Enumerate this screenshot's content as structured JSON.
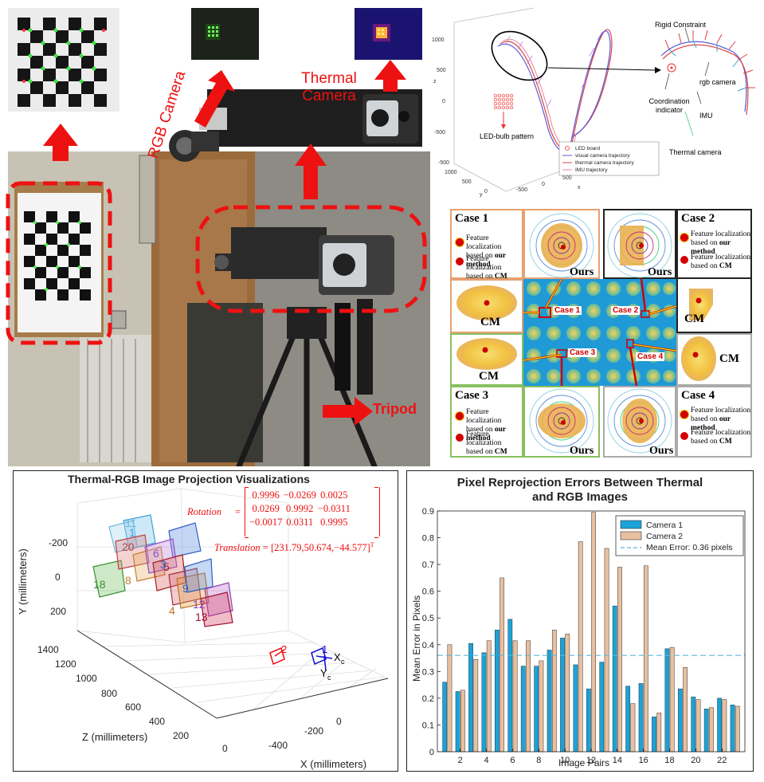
{
  "photo": {
    "rgb_camera_label": "RGB Camera",
    "thermal_camera_label": "Thermal Camera",
    "tripod_label": "Tripod"
  },
  "trajectory": {
    "annotations": {
      "rigid_constraint": "Rigid Constraint",
      "rgb_camera": "rgb camera",
      "coordination_indicator": "Coordination indicator",
      "imu": "IMU",
      "thermal_camera": "Thermal camera",
      "led_bulb_pattern": "LED-bulb pattern"
    },
    "legend": [
      "LED board",
      "visual camera trajectory",
      "thermal camera trajectory",
      "IMU trajectory"
    ],
    "z_ticks": [
      "1000",
      "500",
      "0",
      "-500"
    ],
    "z_label": "z",
    "y_ticks": [
      "1000",
      "500",
      "0",
      "-500"
    ],
    "y_label": "y",
    "x_ticks": [
      "-500",
      "0",
      "500"
    ],
    "x_label": "x"
  },
  "cases": {
    "case1": {
      "title": "Case 1",
      "line1_a": "Feature localization",
      "line1_b": "based on ",
      "line1_bold": "our method",
      "line2_a": "Feature localization",
      "line2_b": "based on ",
      "line2_bold": "CM"
    },
    "case2": {
      "title": "Case 2",
      "line1_a": "Feature localization",
      "line1_b": "based on ",
      "line1_bold": "our method",
      "line2_a": "Feature localization",
      "line2_b": "based on ",
      "line2_bold": "CM"
    },
    "case3": {
      "title": "Case 3",
      "line1_a": "Feature localization",
      "line1_b": "based on ",
      "line1_bold": "our method",
      "line2_a": "Feature localization",
      "line2_b": "based on ",
      "line2_bold": "CM"
    },
    "case4": {
      "title": "Case 4",
      "line1_a": "Feature localization",
      "line1_b": "based on ",
      "line1_bold": "our method",
      "line2_a": "Feature localization",
      "line2_b": "based on ",
      "line2_bold": "CM"
    },
    "ours_label": "Ours",
    "cm_label": "CM",
    "center_labels": [
      "Case 1",
      "Case 2",
      "Case 3",
      "Case 4"
    ]
  },
  "projection": {
    "title": "Thermal-RGB Image Projection Visualizations",
    "rotation_label": "Rotation",
    "rotation_matrix": [
      [
        "0.9996",
        "−0.0269",
        "0.0025"
      ],
      [
        "0.0269",
        "0.9992",
        "−0.0311"
      ],
      [
        "−0.0017",
        "0.0311",
        "0.9995"
      ]
    ],
    "translation_label": "Translation",
    "translation_value": "[231.79,50.674,−44.577]",
    "translation_sup": "T",
    "y_axis_label": "Y (millimeters)",
    "y_ticks": [
      "-200",
      "0",
      "200"
    ],
    "z_axis_label": "Z (millimeters)",
    "z_ticks": [
      "1400",
      "1200",
      "1000",
      "800",
      "600",
      "400",
      "200",
      "0"
    ],
    "x_axis_label": "X (millimeters)",
    "x_ticks": [
      "-400",
      "-200",
      "0"
    ],
    "frame_numbers": [
      "20",
      "1",
      "11",
      "18",
      "8",
      "6",
      "9",
      "4",
      "5",
      "12",
      "13",
      "3"
    ],
    "camera_labels": [
      "2",
      "1",
      "X",
      "c",
      "Y",
      "c"
    ]
  },
  "chart_data": {
    "type": "bar",
    "title": "Pixel Reprojection Errors Between Thermal and RGB Images",
    "title_line1": "Pixel Reprojection Errors Between Thermal",
    "title_line2": "and RGB Images",
    "xlabel": "Image Pairs",
    "ylabel": "Mean Error in Pixels",
    "ylim": [
      0,
      0.9
    ],
    "y_ticks": [
      "0",
      "0.1",
      "0.2",
      "0.3",
      "0.4",
      "0.5",
      "0.6",
      "0.7",
      "0.8",
      "0.9"
    ],
    "x_ticks": [
      "2",
      "4",
      "6",
      "8",
      "10",
      "12",
      "14",
      "16",
      "18",
      "20",
      "22"
    ],
    "categories": [
      1,
      2,
      3,
      4,
      5,
      6,
      7,
      8,
      9,
      10,
      11,
      12,
      13,
      14,
      15,
      16,
      17,
      18,
      19,
      20,
      21,
      22,
      23
    ],
    "series": [
      {
        "name": "Camera 1",
        "color": "#1aa3d9",
        "values": [
          0.26,
          0.225,
          0.405,
          0.37,
          0.455,
          0.495,
          0.32,
          0.32,
          0.38,
          0.425,
          0.325,
          0.235,
          0.335,
          0.545,
          0.245,
          0.255,
          0.13,
          0.385,
          0.235,
          0.205,
          0.16,
          0.2,
          0.175
        ]
      },
      {
        "name": "Camera 2",
        "color": "#e8c0a0",
        "values": [
          0.4,
          0.23,
          0.345,
          0.415,
          0.65,
          0.415,
          0.415,
          0.34,
          0.455,
          0.44,
          0.785,
          0.895,
          0.76,
          0.69,
          0.18,
          0.695,
          0.145,
          0.39,
          0.315,
          0.195,
          0.165,
          0.195,
          0.17
        ]
      }
    ],
    "mean_line": {
      "name": "Mean Error: 0.36 pixels",
      "value": 0.36,
      "color": "#5bb8d9"
    },
    "legend_position": "top-right"
  }
}
